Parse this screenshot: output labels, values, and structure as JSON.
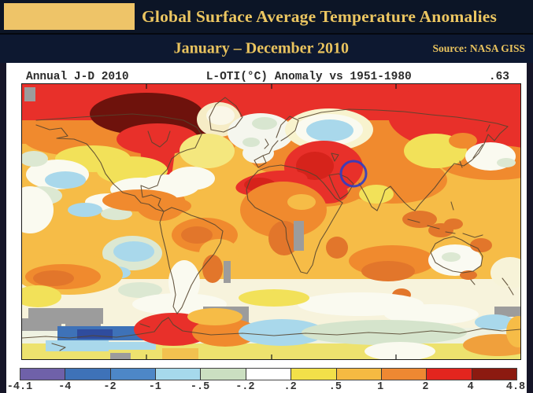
{
  "header": {
    "title": "Global Surface Average Temperature Anomalies",
    "subtitle": "January – December 2010",
    "source_label": "Source: NASA GISS"
  },
  "map": {
    "title_left": "Annual J-D 2010",
    "title_center": "L-OTI(°C) Anomaly vs 1951-1980",
    "title_right": ".63"
  },
  "colorbar": {
    "tick_labels": [
      "-4.1",
      "-4",
      "-2",
      "-1",
      "-.5",
      "-.2",
      ".2",
      ".5",
      "1",
      "2",
      "4",
      "4.8"
    ],
    "segment_colors": [
      "#6f61a9",
      "#3e72b8",
      "#4d87c7",
      "#a6d9ec",
      "#cbdfc1",
      "#ffffff",
      "#f2e049",
      "#f5ba42",
      "#ee8832",
      "#e3251e",
      "#8c1a10"
    ]
  },
  "chart_data": {
    "type": "heatmap",
    "title": "Global Surface Average Temperature Anomalies",
    "period": "January – December 2010",
    "source": "NASA GISS",
    "series_label": "Annual J-D 2010",
    "variable": "L-OTI(°C) Anomaly vs 1951-1980",
    "global_mean_anomaly_c": 0.63,
    "units": "°C relative to 1951-1980 baseline",
    "legend_position": "bottom",
    "scale_boundaries_c": [
      -4.1,
      -4,
      -2,
      -1,
      -0.5,
      -0.2,
      0.2,
      0.5,
      1,
      2,
      4,
      4.8
    ],
    "scale_colors": [
      "#6f61a9",
      "#3e72b8",
      "#4d87c7",
      "#a6d9ec",
      "#cbdfc1",
      "#ffffff",
      "#f2e049",
      "#f5ba42",
      "#ee8832",
      "#e3251e",
      "#8c1a10"
    ],
    "no_data_color": "#9c9c9c",
    "annotation": {
      "shape": "blue circle outline",
      "region": "Central/South Asia (Middle East–Pakistan area)",
      "color": "#2e3ec4"
    },
    "notable_regions": [
      {
        "region": "Arctic Canada / Baffin Bay",
        "anomaly_c": "+4 to +4.8"
      },
      {
        "region": "Arctic Ocean rim",
        "anomaly_c": "+2 to +4"
      },
      {
        "region": "Middle East / Central Asia",
        "anomaly_c": "+2 to +4"
      },
      {
        "region": "Sahara / North Africa",
        "anomaly_c": "+2 to +4"
      },
      {
        "region": "Central Siberia",
        "anomaly_c": "-0.5 to -1"
      },
      {
        "region": "Northern Europe / Scandinavia",
        "anomaly_c": "-0.2 to -0.5"
      },
      {
        "region": "Eastern tropical Pacific",
        "anomaly_c": "-0.2 to -1"
      },
      {
        "region": "Southern Ocean south of South America",
        "anomaly_c": "+2 to +4"
      },
      {
        "region": "Antarctic coastal band",
        "anomaly_c": "-0.2 to -2 with gray no-data patches"
      },
      {
        "region": "Interior Australia",
        "anomaly_c": "-0.2 to +0.2"
      }
    ]
  }
}
